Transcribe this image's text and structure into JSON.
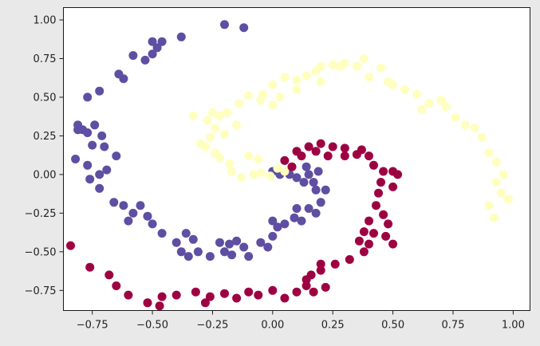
{
  "chart_data": {
    "type": "scatter",
    "title": "",
    "xlabel": "",
    "ylabel": "",
    "xlim": [
      -0.87,
      1.07
    ],
    "ylim": [
      -0.88,
      1.08
    ],
    "grid": false,
    "legend": "none",
    "x_ticks": [
      -0.75,
      -0.5,
      -0.25,
      0.0,
      0.25,
      0.5,
      0.75,
      1.0
    ],
    "x_tick_labels": [
      "−0.75",
      "−0.50",
      "−0.25",
      "0.00",
      "0.25",
      "0.50",
      "0.75",
      "1.00"
    ],
    "y_ticks": [
      1.0,
      0.75,
      0.5,
      0.25,
      0.0,
      -0.25,
      -0.5,
      -0.75
    ],
    "y_tick_labels": [
      "1.00",
      "0.75",
      "0.50",
      "0.25",
      "0.00",
      "−0.25",
      "−0.50",
      "−0.75"
    ],
    "series": [
      {
        "color": "#5e4fa2",
        "points": [
          [
            -0.2,
            0.97
          ],
          [
            -0.12,
            0.95
          ],
          [
            -0.38,
            0.89
          ],
          [
            -0.5,
            0.86
          ],
          [
            -0.46,
            0.86
          ],
          [
            -0.48,
            0.82
          ],
          [
            -0.5,
            0.78
          ],
          [
            -0.58,
            0.77
          ],
          [
            -0.53,
            0.74
          ],
          [
            -0.64,
            0.65
          ],
          [
            -0.62,
            0.62
          ],
          [
            -0.72,
            0.54
          ],
          [
            -0.77,
            0.5
          ],
          [
            -0.81,
            0.32
          ],
          [
            -0.79,
            0.29
          ],
          [
            -0.74,
            0.32
          ],
          [
            -0.81,
            0.29
          ],
          [
            -0.77,
            0.27
          ],
          [
            -0.71,
            0.25
          ],
          [
            -0.75,
            0.19
          ],
          [
            -0.7,
            0.18
          ],
          [
            -0.65,
            0.12
          ],
          [
            -0.82,
            0.1
          ],
          [
            -0.77,
            0.06
          ],
          [
            -0.69,
            0.03
          ],
          [
            -0.72,
            0.0
          ],
          [
            -0.76,
            -0.03
          ],
          [
            -0.72,
            -0.09
          ],
          [
            -0.66,
            -0.18
          ],
          [
            -0.62,
            -0.2
          ],
          [
            -0.55,
            -0.2
          ],
          [
            -0.52,
            -0.27
          ],
          [
            -0.58,
            -0.25
          ],
          [
            -0.6,
            -0.3
          ],
          [
            -0.5,
            -0.32
          ],
          [
            -0.46,
            -0.38
          ],
          [
            -0.4,
            -0.44
          ],
          [
            -0.36,
            -0.38
          ],
          [
            -0.33,
            -0.42
          ],
          [
            -0.38,
            -0.5
          ],
          [
            -0.31,
            -0.5
          ],
          [
            -0.35,
            -0.53
          ],
          [
            -0.26,
            -0.53
          ],
          [
            -0.22,
            -0.44
          ],
          [
            -0.18,
            -0.45
          ],
          [
            -0.15,
            -0.43
          ],
          [
            -0.2,
            -0.5
          ],
          [
            -0.17,
            -0.52
          ],
          [
            -0.12,
            -0.47
          ],
          [
            -0.1,
            -0.53
          ],
          [
            -0.05,
            -0.44
          ],
          [
            -0.02,
            -0.47
          ],
          [
            0.0,
            -0.4
          ],
          [
            0.02,
            -0.34
          ],
          [
            0.05,
            -0.32
          ],
          [
            0.0,
            -0.3
          ],
          [
            0.09,
            -0.28
          ],
          [
            0.12,
            -0.3
          ],
          [
            0.1,
            -0.22
          ],
          [
            0.15,
            -0.22
          ],
          [
            0.18,
            -0.25
          ],
          [
            0.2,
            -0.18
          ],
          [
            0.18,
            -0.1
          ],
          [
            0.13,
            -0.05
          ],
          [
            0.1,
            -0.02
          ],
          [
            0.07,
            0.0
          ],
          [
            0.03,
            0.0
          ],
          [
            0.0,
            0.02
          ],
          [
            0.15,
            0.0
          ],
          [
            0.19,
            0.02
          ],
          [
            0.14,
            0.05
          ],
          [
            0.17,
            -0.05
          ],
          [
            0.22,
            -0.1
          ]
        ]
      },
      {
        "color": "#ffffbf",
        "points": [
          [
            0.02,
            0.04
          ],
          [
            0.05,
            0.02
          ],
          [
            -0.01,
            -0.01
          ],
          [
            -0.05,
            0.01
          ],
          [
            -0.08,
            0.0
          ],
          [
            -0.13,
            -0.02
          ],
          [
            -0.17,
            0.02
          ],
          [
            -0.18,
            0.07
          ],
          [
            -0.22,
            0.11
          ],
          [
            -0.24,
            0.14
          ],
          [
            -0.28,
            0.18
          ],
          [
            -0.3,
            0.2
          ],
          [
            -0.26,
            0.24
          ],
          [
            -0.24,
            0.3
          ],
          [
            -0.27,
            0.35
          ],
          [
            -0.33,
            0.38
          ],
          [
            -0.25,
            0.4
          ],
          [
            -0.22,
            0.38
          ],
          [
            -0.19,
            0.4
          ],
          [
            -0.14,
            0.46
          ],
          [
            -0.1,
            0.51
          ],
          [
            -0.04,
            0.52
          ],
          [
            0.0,
            0.58
          ],
          [
            0.05,
            0.63
          ],
          [
            0.1,
            0.61
          ],
          [
            0.14,
            0.64
          ],
          [
            0.18,
            0.67
          ],
          [
            0.2,
            0.7
          ],
          [
            0.25,
            0.71
          ],
          [
            0.28,
            0.7
          ],
          [
            0.3,
            0.72
          ],
          [
            0.35,
            0.7
          ],
          [
            0.38,
            0.75
          ],
          [
            0.45,
            0.69
          ],
          [
            0.4,
            0.63
          ],
          [
            0.48,
            0.6
          ],
          [
            0.5,
            0.58
          ],
          [
            0.55,
            0.55
          ],
          [
            0.6,
            0.52
          ],
          [
            0.65,
            0.46
          ],
          [
            0.62,
            0.42
          ],
          [
            0.7,
            0.48
          ],
          [
            0.72,
            0.44
          ],
          [
            0.76,
            0.37
          ],
          [
            0.8,
            0.32
          ],
          [
            0.84,
            0.3
          ],
          [
            0.87,
            0.24
          ],
          [
            0.9,
            0.14
          ],
          [
            0.93,
            0.08
          ],
          [
            0.96,
            0.0
          ],
          [
            0.93,
            -0.05
          ],
          [
            0.95,
            -0.12
          ],
          [
            0.98,
            -0.16
          ],
          [
            0.9,
            -0.2
          ],
          [
            0.92,
            -0.28
          ],
          [
            0.1,
            0.55
          ],
          [
            0.2,
            0.6
          ],
          [
            -0.05,
            0.48
          ],
          [
            0.03,
            0.5
          ],
          [
            -0.2,
            0.26
          ],
          [
            -0.15,
            0.32
          ],
          [
            -0.1,
            0.12
          ],
          [
            -0.06,
            0.1
          ],
          [
            0.0,
            0.45
          ]
        ]
      },
      {
        "color": "#9e0142",
        "points": [
          [
            0.05,
            0.09
          ],
          [
            0.1,
            0.15
          ],
          [
            0.15,
            0.18
          ],
          [
            0.2,
            0.2
          ],
          [
            0.25,
            0.18
          ],
          [
            0.3,
            0.17
          ],
          [
            0.35,
            0.13
          ],
          [
            0.4,
            0.12
          ],
          [
            0.42,
            0.06
          ],
          [
            0.46,
            0.02
          ],
          [
            0.45,
            -0.05
          ],
          [
            0.44,
            -0.12
          ],
          [
            0.43,
            -0.2
          ],
          [
            0.46,
            -0.26
          ],
          [
            0.4,
            -0.3
          ],
          [
            0.38,
            -0.37
          ],
          [
            0.36,
            -0.43
          ],
          [
            0.38,
            -0.5
          ],
          [
            0.32,
            -0.55
          ],
          [
            0.26,
            -0.58
          ],
          [
            0.2,
            -0.62
          ],
          [
            0.16,
            -0.65
          ],
          [
            0.14,
            -0.72
          ],
          [
            0.1,
            -0.76
          ],
          [
            0.05,
            -0.8
          ],
          [
            0.0,
            -0.75
          ],
          [
            -0.06,
            -0.78
          ],
          [
            -0.1,
            -0.76
          ],
          [
            -0.15,
            -0.8
          ],
          [
            -0.2,
            -0.77
          ],
          [
            -0.26,
            -0.79
          ],
          [
            -0.28,
            -0.83
          ],
          [
            -0.32,
            -0.76
          ],
          [
            -0.4,
            -0.78
          ],
          [
            -0.46,
            -0.79
          ],
          [
            -0.47,
            -0.85
          ],
          [
            -0.52,
            -0.83
          ],
          [
            -0.6,
            -0.78
          ],
          [
            -0.65,
            -0.72
          ],
          [
            -0.68,
            -0.65
          ],
          [
            -0.76,
            -0.6
          ],
          [
            -0.84,
            -0.46
          ],
          [
            0.17,
            -0.76
          ],
          [
            0.22,
            -0.73
          ],
          [
            0.5,
            -0.45
          ],
          [
            0.5,
            -0.08
          ],
          [
            0.48,
            -0.32
          ],
          [
            0.42,
            -0.38
          ],
          [
            0.47,
            -0.4
          ],
          [
            0.4,
            -0.45
          ],
          [
            0.3,
            0.12
          ],
          [
            0.37,
            0.16
          ],
          [
            0.18,
            0.15
          ],
          [
            0.23,
            0.12
          ],
          [
            0.12,
            0.12
          ],
          [
            0.08,
            0.05
          ],
          [
            0.5,
            0.02
          ],
          [
            0.52,
            0.0
          ],
          [
            0.14,
            -0.68
          ],
          [
            0.2,
            -0.58
          ]
        ]
      }
    ]
  }
}
